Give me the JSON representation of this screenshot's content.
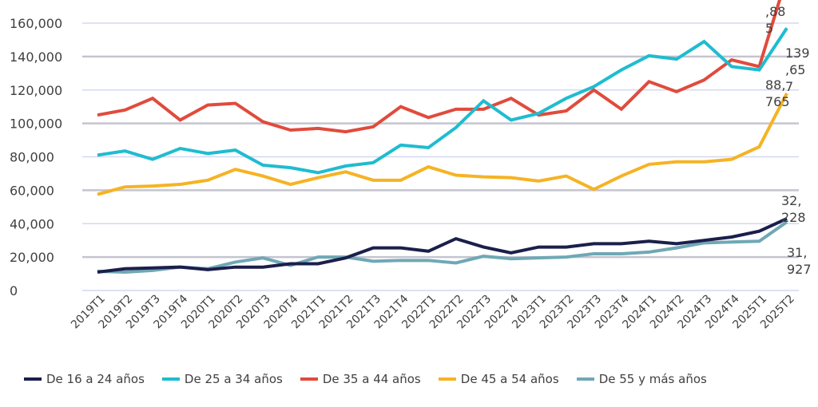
{
  "chart_data": {
    "type": "line",
    "title": "",
    "xlabel": "",
    "ylabel": "",
    "ylim": [
      0,
      160000
    ],
    "yticks": [
      "0",
      "20,000",
      "40,000",
      "60,000",
      "80,000",
      "100,000",
      "120,000",
      "140,000",
      "160,000"
    ],
    "grid": true,
    "legend_position": "bottom",
    "categories": [
      "2019T1",
      "2019T2",
      "2019T3",
      "2019T4",
      "2020T1",
      "2020T2",
      "2020T3",
      "2020T4",
      "2021T1",
      "2021T2",
      "2021T3",
      "2021T4",
      "2022T1",
      "2022T2",
      "2022T3",
      "2022T4",
      "2023T1",
      "2023T2",
      "2023T3",
      "2023T4",
      "2024T1",
      "2024T2",
      "2024T3",
      "2024T4",
      "2025T1",
      "2025T2"
    ],
    "series": [
      {
        "name": "De 16 a 24 años",
        "color": "#1B1F4B",
        "values": [
          11000,
          13000,
          13500,
          14000,
          12500,
          14000,
          14000,
          16000,
          16000,
          19500,
          25500,
          25500,
          23500,
          31000,
          26000,
          22500,
          26000,
          26000,
          28000,
          28000,
          29500,
          28000,
          30000,
          32000,
          35500,
          43000
        ]
      },
      {
        "name": "De 25 a 34 años",
        "color": "#1FBCD0",
        "values": [
          81000,
          83500,
          78500,
          85000,
          82000,
          84000,
          75000,
          73500,
          70500,
          74500,
          76500,
          87000,
          85500,
          97500,
          113500,
          102000,
          106000,
          115000,
          122000,
          132000,
          140500,
          138500,
          149000,
          134000,
          132000,
          157000
        ]
      },
      {
        "name": "De 35 a 44 años",
        "color": "#E04B3C",
        "values": [
          105000,
          108000,
          115000,
          102000,
          111000,
          112000,
          101000,
          96000,
          97000,
          95000,
          98000,
          110000,
          103500,
          108500,
          108500,
          115000,
          105000,
          107500,
          120000,
          108500,
          125000,
          119000,
          126000,
          138000,
          134000,
          188000
        ]
      },
      {
        "name": "De 45 a 54 años",
        "color": "#F5B324",
        "values": [
          57500,
          62000,
          62500,
          63500,
          66000,
          72500,
          68500,
          63500,
          67500,
          71000,
          66000,
          66000,
          74000,
          69000,
          68000,
          67500,
          65500,
          68500,
          60500,
          68500,
          75500,
          77000,
          77000,
          78500,
          86000,
          118000
        ]
      },
      {
        "name": "De 55 y más años",
        "color": "#6FA8B5",
        "values": [
          11500,
          11000,
          12000,
          14000,
          13000,
          17000,
          19500,
          15000,
          20000,
          20000,
          17500,
          18000,
          18000,
          16500,
          20500,
          19000,
          19500,
          20000,
          22000,
          22000,
          23000,
          25500,
          28500,
          29000,
          29500,
          41000
        ]
      }
    ],
    "annotations": [
      {
        "lines": [
          ",88",
          "5"
        ]
      },
      {
        "lines": [
          "139",
          ",65",
          "7"
        ]
      },
      {
        "lines": [
          "88,",
          "765"
        ]
      },
      {
        "lines": [
          "32,",
          "228"
        ]
      },
      {
        "lines": [
          "31,",
          "927"
        ]
      }
    ]
  }
}
